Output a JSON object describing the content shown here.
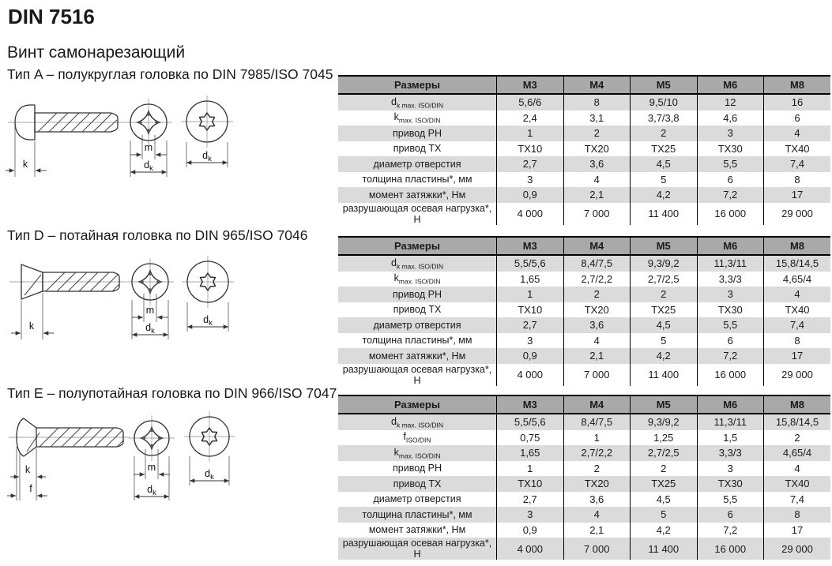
{
  "page": {
    "title": "DIN 7516",
    "subtitle": "Винт самонарезающий"
  },
  "colors": {
    "hdr": "#a9a9a9",
    "alt": "#dbdbdb"
  },
  "dims": {
    "k": "k",
    "m": "m",
    "f": "f",
    "d": "d",
    "d_sub": "k"
  },
  "sections": [
    {
      "id": "A",
      "heading": "Тип A – полукруглая головка по DIN 7985/ISO 7045",
      "table": {
        "header": [
          "Размеры",
          "M3",
          "M4",
          "M5",
          "M6",
          "M8"
        ],
        "rows": [
          {
            "label_main": "d",
            "label_sub": "k max. ISO/DIN",
            "values": [
              "5,6/6",
              "8",
              "9,5/10",
              "12",
              "16"
            ]
          },
          {
            "label_main": "k",
            "label_sub": "max. ISO/DIN",
            "values": [
              "2,4",
              "3,1",
              "3,7/3,8",
              "4,6",
              "6"
            ]
          },
          {
            "label": "привод PH",
            "values": [
              "1",
              "2",
              "2",
              "3",
              "4"
            ]
          },
          {
            "label": "привод TX",
            "values": [
              "TX10",
              "TX20",
              "TX25",
              "TX30",
              "TX40"
            ]
          },
          {
            "label": "диаметр отверстия",
            "values": [
              "2,7",
              "3,6",
              "4,5",
              "5,5",
              "7,4"
            ]
          },
          {
            "label": "толщина пластины*, мм",
            "values": [
              "3",
              "4",
              "5",
              "6",
              "8"
            ]
          },
          {
            "label": "момент затяжки*, Нм",
            "values": [
              "0,9",
              "2,1",
              "4,2",
              "7,2",
              "17"
            ]
          },
          {
            "label": "разрушающая осевая нагрузка*, Н",
            "values": [
              "4 000",
              "7 000",
              "11 400",
              "16 000",
              "29 000"
            ]
          }
        ]
      }
    },
    {
      "id": "D",
      "heading": "Тип D – потайная головка по DIN 965/ISO 7046",
      "table": {
        "header": [
          "Размеры",
          "M3",
          "M4",
          "M5",
          "M6",
          "M8"
        ],
        "rows": [
          {
            "label_main": "d",
            "label_sub": "k max. ISO/DIN",
            "values": [
              "5,5/5,6",
              "8,4/7,5",
              "9,3/9,2",
              "11,3/11",
              "15,8/14,5"
            ]
          },
          {
            "label_main": "k",
            "label_sub": "max. ISO/DIN",
            "values": [
              "1,65",
              "2,7/2,2",
              "2,7/2,5",
              "3,3/3",
              "4,65/4"
            ]
          },
          {
            "label": "привод PH",
            "values": [
              "1",
              "2",
              "2",
              "3",
              "4"
            ]
          },
          {
            "label": "привод TX",
            "values": [
              "TX10",
              "TX20",
              "TX25",
              "TX30",
              "TX40"
            ]
          },
          {
            "label": "диаметр отверстия",
            "values": [
              "2,7",
              "3,6",
              "4,5",
              "5,5",
              "7,4"
            ]
          },
          {
            "label": "толщина пластины*, мм",
            "values": [
              "3",
              "4",
              "5",
              "6",
              "8"
            ]
          },
          {
            "label": "момент затяжки*, Нм",
            "values": [
              "0,9",
              "2,1",
              "4,2",
              "7,2",
              "17"
            ]
          },
          {
            "label": "разрушающая осевая нагрузка*, Н",
            "values": [
              "4 000",
              "7 000",
              "11 400",
              "16 000",
              "29 000"
            ]
          }
        ]
      }
    },
    {
      "id": "E",
      "heading": "Тип E – полупотайная головка по DIN 966/ISO 7047",
      "table": {
        "header": [
          "Размеры",
          "M3",
          "M4",
          "M5",
          "M6",
          "M8"
        ],
        "rows": [
          {
            "label_main": "d",
            "label_sub": "k max. ISO/DIN",
            "values": [
              "5,5/5,6",
              "8,4/7,5",
              "9,3/9,2",
              "11,3/11",
              "15,8/14,5"
            ]
          },
          {
            "label_main": "f",
            "label_sub": "ISO/DIN",
            "values": [
              "0,75",
              "1",
              "1,25",
              "1,5",
              "2"
            ]
          },
          {
            "label_main": "k",
            "label_sub": "max. ISO/DIN",
            "values": [
              "1,65",
              "2,7/2,2",
              "2,7/2,5",
              "3,3/3",
              "4,65/4"
            ]
          },
          {
            "label": "привод PH",
            "values": [
              "1",
              "2",
              "2",
              "3",
              "4"
            ]
          },
          {
            "label": "привод TX",
            "values": [
              "TX10",
              "TX20",
              "TX25",
              "TX30",
              "TX40"
            ]
          },
          {
            "label": "диаметр отверстия",
            "values": [
              "2,7",
              "3,6",
              "4,5",
              "5,5",
              "7,4"
            ]
          },
          {
            "label": "толщина пластины*, мм",
            "values": [
              "3",
              "4",
              "5",
              "6",
              "8"
            ]
          },
          {
            "label": "момент затяжки*, Нм",
            "values": [
              "0,9",
              "2,1",
              "4,2",
              "7,2",
              "17"
            ]
          },
          {
            "label": "разрушающая осевая нагрузка*, Н",
            "values": [
              "4 000",
              "7 000",
              "11 400",
              "16 000",
              "29 000"
            ]
          }
        ]
      }
    }
  ]
}
